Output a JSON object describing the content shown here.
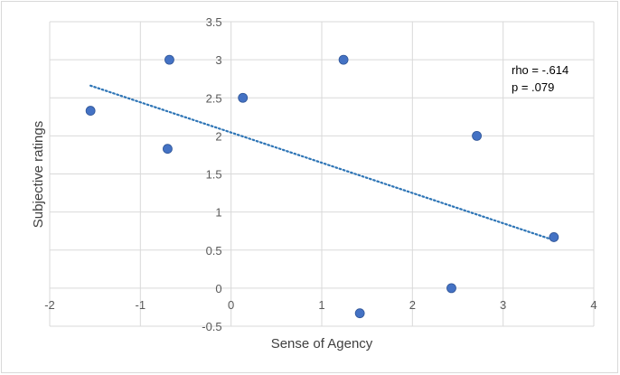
{
  "chart_data": {
    "type": "scatter",
    "title": "",
    "xlabel": "Sense of Agency",
    "ylabel": "Subjective ratings",
    "xlim": [
      -2,
      4
    ],
    "ylim": [
      -0.5,
      3.5
    ],
    "x_ticks": [
      "-2",
      "-1",
      "0",
      "1",
      "2",
      "3",
      "4"
    ],
    "y_ticks": [
      "-0.5",
      "0",
      "0.5",
      "1",
      "1.5",
      "2",
      "2.5",
      "3",
      "3.5"
    ],
    "grid": true,
    "legend": "none",
    "series": [
      {
        "points": [
          {
            "x": -1.55,
            "y": 2.33
          },
          {
            "x": -0.68,
            "y": 3.0
          },
          {
            "x": -0.7,
            "y": 1.83
          },
          {
            "x": 0.13,
            "y": 2.5
          },
          {
            "x": 1.24,
            "y": 3.0
          },
          {
            "x": 1.42,
            "y": -0.33
          },
          {
            "x": 2.43,
            "y": 0.0
          },
          {
            "x": 2.71,
            "y": 2.0
          },
          {
            "x": 3.56,
            "y": 0.67
          }
        ],
        "color": "#4472c4"
      }
    ],
    "trendline": {
      "x": [
        -1.55,
        3.56
      ],
      "y": [
        2.66,
        0.63
      ],
      "style": "dotted",
      "color": "#2e75b6"
    },
    "annotation": {
      "line1": "rho = -.614",
      "line2": "p = .079"
    }
  },
  "colors": {
    "grid": "#d9d9d9",
    "marker": "#4472c4",
    "marker_edge": "#2f5597",
    "trend": "#2e75b6"
  }
}
